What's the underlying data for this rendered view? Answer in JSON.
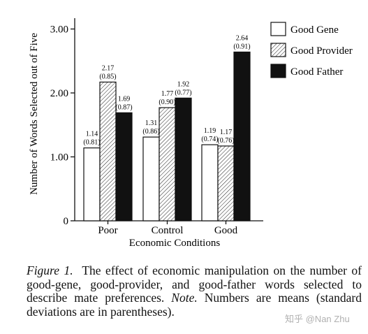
{
  "chart_data": {
    "type": "bar",
    "title": "",
    "xlabel": "Economic Conditions",
    "ylabel": "Number of Words Selected out of Five",
    "ylim": [
      0,
      3.2
    ],
    "yticks": [
      0,
      1,
      2,
      3
    ],
    "ytick_labels": [
      "0",
      "1.00",
      "2.00",
      "3.00"
    ],
    "grid": false,
    "legend_position": "top-right",
    "categories": [
      "Poor",
      "Control",
      "Good"
    ],
    "series": [
      {
        "name": "Good Gene",
        "fill": "white",
        "values": [
          1.14,
          1.31,
          1.19
        ],
        "sd": [
          0.81,
          0.86,
          0.74
        ],
        "labels": [
          "1.14",
          "1.31",
          "1.19"
        ],
        "sd_labels": [
          "(0.81)",
          "(0.86)",
          "(0.74)"
        ]
      },
      {
        "name": "Good Provider",
        "fill": "hatched",
        "values": [
          2.17,
          1.77,
          1.17
        ],
        "sd": [
          0.85,
          0.9,
          0.76
        ],
        "labels": [
          "2.17",
          "1.77",
          "1.17"
        ],
        "sd_labels": [
          "(0.85)",
          "(0.90)",
          "(0.76)"
        ]
      },
      {
        "name": "Good Father",
        "fill": "black",
        "values": [
          1.69,
          1.92,
          2.64
        ],
        "sd": [
          0.87,
          0.77,
          0.91
        ],
        "labels": [
          "1.69",
          "1.92",
          "2.64"
        ],
        "sd_labels": [
          "(0.87)",
          "(0.77)",
          "(0.91)"
        ]
      }
    ]
  },
  "caption": {
    "label": "Figure 1.",
    "text": "The effect of economic manipulation on the number of good-gene, good-provider, and good-father words selected to describe mate preferences.",
    "note_label": "Note.",
    "note_text": "Numbers are means (standard deviations are in parentheses)."
  },
  "watermark": "知乎 @Nan Zhu"
}
